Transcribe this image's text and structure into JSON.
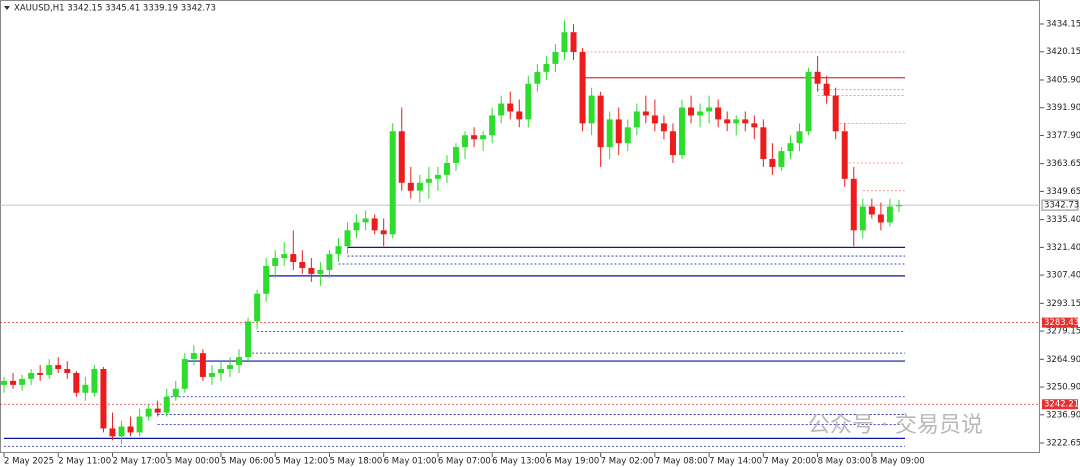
{
  "chart_data": {
    "type": "candlestick",
    "title": "XAUUSD,H1  3342.15 3345.41 3339.19 3342.73",
    "watermark": "公众号 · 交易员说",
    "up_color": "#2ddc2d",
    "down_color": "#ec1c1c",
    "ylim": [
      3222.65,
      3434.15
    ],
    "yticks": [
      {
        "value": 3434.15,
        "label": "3434.15"
      },
      {
        "value": 3420.15,
        "label": "3420.15"
      },
      {
        "value": 3405.9,
        "label": "3405.90"
      },
      {
        "value": 3391.9,
        "label": "3391.90"
      },
      {
        "value": 3377.9,
        "label": "3377.90"
      },
      {
        "value": 3363.65,
        "label": "3363.65"
      },
      {
        "value": 3349.65,
        "label": "3349.65"
      },
      {
        "value": 3335.4,
        "label": "3335.40"
      },
      {
        "value": 3321.4,
        "label": "3321.40"
      },
      {
        "value": 3307.4,
        "label": "3307.40"
      },
      {
        "value": 3293.15,
        "label": "3293.15"
      },
      {
        "value": 3279.15,
        "label": "3279.15"
      },
      {
        "value": 3264.9,
        "label": "3264.90"
      },
      {
        "value": 3250.9,
        "label": "3250.90"
      },
      {
        "value": 3236.9,
        "label": "3236.90"
      },
      {
        "value": 3222.65,
        "label": "3222.65"
      }
    ],
    "xticks": [
      {
        "value": 0,
        "label": "2 May 2025"
      },
      {
        "value": 6,
        "label": "2 May 11:00"
      },
      {
        "value": 12,
        "label": "2 May 17:00"
      },
      {
        "value": 18,
        "label": "5 May 00:00"
      },
      {
        "value": 24,
        "label": "5 May 06:00"
      },
      {
        "value": 30,
        "label": "5 May 12:00"
      },
      {
        "value": 36,
        "label": "5 May 18:00"
      },
      {
        "value": 42,
        "label": "6 May 01:00"
      },
      {
        "value": 48,
        "label": "6 May 07:00"
      },
      {
        "value": 54,
        "label": "6 May 13:00"
      },
      {
        "value": 60,
        "label": "6 May 19:00"
      },
      {
        "value": 66,
        "label": "7 May 02:00"
      },
      {
        "value": 72,
        "label": "7 May 08:00"
      },
      {
        "value": 78,
        "label": "7 May 14:00"
      },
      {
        "value": 84,
        "label": "7 May 20:00"
      },
      {
        "value": 90,
        "label": "8 May 03:00"
      },
      {
        "value": 96,
        "label": "8 May 09:00"
      }
    ],
    "current_price": 3342.73,
    "ohlc": [
      [
        3252,
        3256,
        3248,
        3254
      ],
      [
        3254,
        3258,
        3250,
        3252
      ],
      [
        3252,
        3257,
        3249,
        3255
      ],
      [
        3255,
        3260,
        3252,
        3258
      ],
      [
        3258,
        3262,
        3254,
        3257
      ],
      [
        3257,
        3265,
        3255,
        3262
      ],
      [
        3262,
        3266,
        3258,
        3260
      ],
      [
        3260,
        3264,
        3255,
        3258
      ],
      [
        3258,
        3259,
        3246,
        3248
      ],
      [
        3248,
        3256,
        3244,
        3252
      ],
      [
        3248,
        3262,
        3246,
        3260
      ],
      [
        3260,
        3261,
        3228,
        3230
      ],
      [
        3230,
        3238,
        3224,
        3226
      ],
      [
        3226,
        3234,
        3222,
        3231
      ],
      [
        3231,
        3236,
        3226,
        3228
      ],
      [
        3228,
        3240,
        3226,
        3236
      ],
      [
        3236,
        3242,
        3234,
        3240
      ],
      [
        3240,
        3244,
        3236,
        3238
      ],
      [
        3238,
        3250,
        3236,
        3246
      ],
      [
        3246,
        3254,
        3244,
        3250
      ],
      [
        3250,
        3268,
        3248,
        3265
      ],
      [
        3265,
        3272,
        3262,
        3268
      ],
      [
        3268,
        3270,
        3254,
        3256
      ],
      [
        3256,
        3262,
        3252,
        3258
      ],
      [
        3258,
        3264,
        3254,
        3260
      ],
      [
        3260,
        3266,
        3256,
        3262
      ],
      [
        3262,
        3270,
        3258,
        3266
      ],
      [
        3266,
        3286,
        3264,
        3284
      ],
      [
        3284,
        3300,
        3280,
        3298
      ],
      [
        3298,
        3316,
        3294,
        3312
      ],
      [
        3312,
        3320,
        3306,
        3316
      ],
      [
        3316,
        3324,
        3312,
        3318
      ],
      [
        3318,
        3330,
        3310,
        3314
      ],
      [
        3314,
        3320,
        3308,
        3311
      ],
      [
        3311,
        3316,
        3304,
        3308
      ],
      [
        3308,
        3314,
        3302,
        3310
      ],
      [
        3310,
        3320,
        3306,
        3318
      ],
      [
        3318,
        3326,
        3314,
        3322
      ],
      [
        3322,
        3334,
        3318,
        3330
      ],
      [
        3330,
        3338,
        3326,
        3334
      ],
      [
        3334,
        3340,
        3330,
        3336
      ],
      [
        3336,
        3338,
        3328,
        3330
      ],
      [
        3330,
        3336,
        3322,
        3328
      ],
      [
        3328,
        3384,
        3326,
        3380
      ],
      [
        3380,
        3392,
        3350,
        3354
      ],
      [
        3354,
        3362,
        3346,
        3350
      ],
      [
        3350,
        3358,
        3344,
        3354
      ],
      [
        3354,
        3362,
        3346,
        3356
      ],
      [
        3356,
        3362,
        3350,
        3358
      ],
      [
        3358,
        3368,
        3354,
        3364
      ],
      [
        3364,
        3374,
        3360,
        3372
      ],
      [
        3372,
        3380,
        3366,
        3378
      ],
      [
        3378,
        3382,
        3372,
        3376
      ],
      [
        3376,
        3380,
        3370,
        3378
      ],
      [
        3378,
        3392,
        3374,
        3388
      ],
      [
        3388,
        3398,
        3384,
        3394
      ],
      [
        3394,
        3400,
        3386,
        3390
      ],
      [
        3390,
        3396,
        3382,
        3386
      ],
      [
        3386,
        3408,
        3382,
        3404
      ],
      [
        3404,
        3414,
        3400,
        3410
      ],
      [
        3410,
        3418,
        3406,
        3414
      ],
      [
        3414,
        3424,
        3410,
        3420
      ],
      [
        3420,
        3436,
        3416,
        3430
      ],
      [
        3430,
        3434,
        3416,
        3420
      ],
      [
        3420,
        3422,
        3380,
        3384
      ],
      [
        3384,
        3402,
        3378,
        3398
      ],
      [
        3398,
        3400,
        3362,
        3372
      ],
      [
        3372,
        3390,
        3366,
        3386
      ],
      [
        3386,
        3392,
        3368,
        3374
      ],
      [
        3374,
        3386,
        3370,
        3382
      ],
      [
        3382,
        3394,
        3378,
        3390
      ],
      [
        3390,
        3398,
        3384,
        3388
      ],
      [
        3388,
        3396,
        3380,
        3384
      ],
      [
        3384,
        3388,
        3376,
        3380
      ],
      [
        3380,
        3384,
        3364,
        3368
      ],
      [
        3368,
        3396,
        3366,
        3392
      ],
      [
        3392,
        3398,
        3384,
        3388
      ],
      [
        3388,
        3394,
        3382,
        3390
      ],
      [
        3390,
        3398,
        3384,
        3392
      ],
      [
        3392,
        3396,
        3382,
        3386
      ],
      [
        3386,
        3390,
        3380,
        3384
      ],
      [
        3384,
        3388,
        3378,
        3386
      ],
      [
        3386,
        3390,
        3380,
        3384
      ],
      [
        3384,
        3388,
        3376,
        3382
      ],
      [
        3382,
        3386,
        3362,
        3366
      ],
      [
        3366,
        3374,
        3358,
        3362
      ],
      [
        3362,
        3372,
        3360,
        3370
      ],
      [
        3370,
        3378,
        3366,
        3374
      ],
      [
        3374,
        3384,
        3370,
        3380
      ],
      [
        3380,
        3412,
        3378,
        3410
      ],
      [
        3410,
        3418,
        3400,
        3404
      ],
      [
        3404,
        3408,
        3394,
        3398
      ],
      [
        3398,
        3402,
        3376,
        3380
      ],
      [
        3380,
        3384,
        3352,
        3356
      ],
      [
        3356,
        3362,
        3322,
        3330
      ],
      [
        3330,
        3346,
        3326,
        3342
      ],
      [
        3342,
        3346,
        3336,
        3338
      ],
      [
        3338,
        3344,
        3330,
        3334
      ],
      [
        3334,
        3346,
        3332,
        3342
      ],
      [
        3342.15,
        3345.41,
        3339.19,
        3342.73
      ]
    ],
    "levels": [
      {
        "price": 3407,
        "color": "#e83030",
        "style": "solid",
        "start": 64
      },
      {
        "price": 3420,
        "color": "#f08080",
        "style": "dotted",
        "start": 64
      },
      {
        "price": 3401,
        "color": "#f08080",
        "style": "dotted",
        "start": 90
      },
      {
        "price": 3398,
        "color": "#f08080",
        "style": "dotted",
        "start": 90
      },
      {
        "price": 3384,
        "color": "#f08080",
        "style": "dotted",
        "start": 92
      },
      {
        "price": 3364,
        "color": "#f08080",
        "style": "dotted",
        "start": 93
      },
      {
        "price": 3350,
        "color": "#f08080",
        "style": "dotted",
        "start": 95
      },
      {
        "price": 3321.4,
        "color": "#0a14a8",
        "style": "solid",
        "start": 38
      },
      {
        "price": 3317,
        "color": "#0a14a8",
        "style": "dotted",
        "start": 38
      },
      {
        "price": 3313,
        "color": "#0a14a8",
        "style": "dotted",
        "start": 37
      },
      {
        "price": 3307,
        "color": "#0a14a8",
        "style": "solid",
        "start": 29
      },
      {
        "price": 3279,
        "color": "#0a14a8",
        "style": "dotted",
        "start": 28
      },
      {
        "price": 3268,
        "color": "#0a14a8",
        "style": "dotted",
        "start": 27
      },
      {
        "price": 3264,
        "color": "#0a14a8",
        "style": "solid",
        "start": 20
      },
      {
        "price": 3246,
        "color": "#0a14a8",
        "style": "dotted",
        "start": 18
      },
      {
        "price": 3237,
        "color": "#0a14a8",
        "style": "dotted",
        "start": 17
      },
      {
        "price": 3232,
        "color": "#0a14a8",
        "style": "dotted",
        "start": 17
      },
      {
        "price": 3225,
        "color": "#0a14a8",
        "style": "solid",
        "start": 0
      },
      {
        "price": 3221,
        "color": "#0a14a8",
        "style": "dotted",
        "start": 0
      }
    ],
    "alerts": [
      {
        "price": 3283.43,
        "color": "#e83030"
      },
      {
        "price": 3242.21,
        "color": "#e83030"
      }
    ]
  }
}
